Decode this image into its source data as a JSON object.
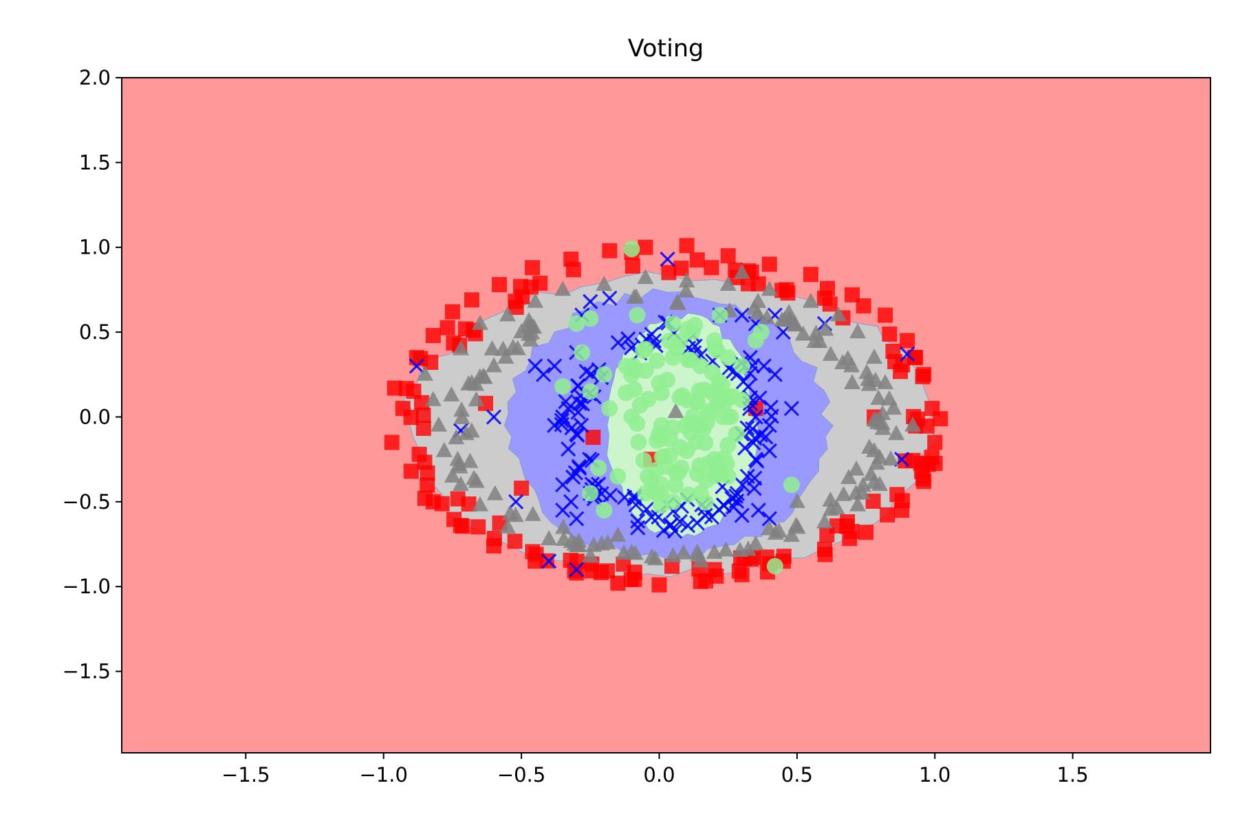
{
  "chart_data": {
    "type": "scatter",
    "title": "Voting",
    "xlabel": "",
    "ylabel": "",
    "xlim": [
      -1.95,
      2.0
    ],
    "ylim": [
      -1.98,
      2.0
    ],
    "x_ticks": [
      -1.5,
      -1.0,
      -0.5,
      0.0,
      0.5,
      1.0,
      1.5
    ],
    "y_ticks": [
      -1.5,
      -1.0,
      -0.5,
      0.0,
      0.5,
      1.0,
      1.5,
      2.0
    ],
    "x_tick_labels": [
      "−1.5",
      "−1.0",
      "−0.5",
      "0.0",
      "0.5",
      "1.0",
      "1.5"
    ],
    "y_tick_labels": [
      "−1.5",
      "−1.0",
      "−0.5",
      "0.0",
      "0.5",
      "1.0",
      "1.5",
      "2.0"
    ],
    "grid": false,
    "decision_regions": [
      {
        "class": "square",
        "color": "#ff9999",
        "extent": "background"
      },
      {
        "class": "triangle",
        "color": "#cccccc",
        "center": [
          0.04,
          -0.05
        ],
        "radii": [
          0.95,
          0.88
        ]
      },
      {
        "class": "x",
        "color": "#9999ff",
        "center": [
          0.03,
          -0.05
        ],
        "radii": [
          0.58,
          0.78
        ]
      },
      {
        "class": "circle",
        "color": "#ccf5cc",
        "center": [
          0.08,
          -0.05
        ],
        "radii": [
          0.27,
          0.65
        ]
      }
    ],
    "series": [
      {
        "marker": "square",
        "color": "#ff0000",
        "ring_center": [
          0.04,
          -0.02
        ],
        "ring_radii": [
          0.98,
          0.94
        ],
        "points": [
          [
            -0.96,
            0.17
          ],
          [
            -0.97,
            -0.15
          ],
          [
            -0.93,
            0.05
          ],
          [
            -0.88,
            0.35
          ],
          [
            -0.82,
            0.48
          ],
          [
            -0.75,
            0.62
          ],
          [
            -0.68,
            0.69
          ],
          [
            -0.58,
            0.78
          ],
          [
            -0.46,
            0.88
          ],
          [
            -0.32,
            0.93
          ],
          [
            -0.18,
            0.98
          ],
          [
            -0.05,
            1.0
          ],
          [
            0.1,
            1.01
          ],
          [
            0.25,
            0.95
          ],
          [
            0.4,
            0.9
          ],
          [
            0.55,
            0.84
          ],
          [
            0.7,
            0.72
          ],
          [
            0.82,
            0.6
          ],
          [
            0.9,
            0.45
          ],
          [
            0.96,
            0.25
          ],
          [
            0.99,
            0.05
          ],
          [
            1.0,
            -0.15
          ],
          [
            0.96,
            -0.38
          ],
          [
            0.88,
            -0.55
          ],
          [
            0.75,
            -0.68
          ],
          [
            0.6,
            -0.78
          ],
          [
            0.45,
            -0.85
          ],
          [
            0.3,
            -0.93
          ],
          [
            0.15,
            -0.97
          ],
          [
            0.0,
            -0.99
          ],
          [
            -0.15,
            -0.98
          ],
          [
            -0.3,
            -0.92
          ],
          [
            -0.45,
            -0.85
          ],
          [
            -0.6,
            -0.76
          ],
          [
            -0.72,
            -0.64
          ],
          [
            -0.82,
            -0.5
          ],
          [
            -0.9,
            -0.32
          ],
          [
            -0.63,
            0.08
          ],
          [
            -0.24,
            -0.12
          ],
          [
            -0.03,
            -0.25
          ],
          [
            0.35,
            0.05
          ],
          [
            0.78,
            0.0
          ],
          [
            -0.5,
            -0.42
          ],
          [
            0.2,
            -0.9
          ],
          [
            -0.1,
            0.97
          ],
          [
            0.6,
            0.7
          ],
          [
            -0.85,
            -0.48
          ],
          [
            0.93,
            0.35
          ]
        ]
      },
      {
        "marker": "x",
        "color": "#0000ff",
        "ring_center": [
          0.03,
          -0.05
        ],
        "ring_radii": [
          0.38,
          0.6
        ],
        "points": [
          [
            -0.35,
            0.0
          ],
          [
            -0.33,
            0.05
          ],
          [
            -0.38,
            -0.05
          ],
          [
            -0.3,
            -0.1
          ],
          [
            -0.35,
            -0.4
          ],
          [
            -0.32,
            -0.5
          ],
          [
            -0.3,
            -0.6
          ],
          [
            -0.25,
            -0.45
          ],
          [
            -0.35,
            -0.55
          ],
          [
            -0.28,
            0.6
          ],
          [
            -0.25,
            0.68
          ],
          [
            -0.18,
            0.7
          ],
          [
            -0.38,
            0.3
          ],
          [
            -0.42,
            0.25
          ],
          [
            -0.3,
            0.38
          ],
          [
            0.3,
            0.6
          ],
          [
            0.35,
            0.55
          ],
          [
            0.42,
            0.6
          ],
          [
            0.45,
            0.5
          ],
          [
            0.33,
            0.35
          ],
          [
            0.38,
            0.3
          ],
          [
            0.42,
            0.25
          ],
          [
            0.35,
            0.0
          ],
          [
            0.4,
            -0.05
          ],
          [
            0.3,
            -0.1
          ],
          [
            0.35,
            -0.25
          ],
          [
            0.4,
            -0.2
          ],
          [
            0.32,
            -0.35
          ],
          [
            0.36,
            -0.55
          ],
          [
            0.4,
            -0.6
          ],
          [
            0.3,
            -0.58
          ],
          [
            -0.52,
            -0.5
          ],
          [
            -0.6,
            0.0
          ],
          [
            -0.72,
            -0.08
          ],
          [
            0.48,
            0.05
          ],
          [
            -0.45,
            0.3
          ],
          [
            0.6,
            0.55
          ],
          [
            0.03,
            0.93
          ],
          [
            -0.88,
            0.3
          ],
          [
            0.9,
            0.37
          ],
          [
            -0.4,
            -0.85
          ],
          [
            -0.3,
            -0.9
          ],
          [
            0.88,
            -0.25
          ],
          [
            0.22,
            0.6
          ]
        ]
      },
      {
        "marker": "triangle",
        "color": "#808080",
        "ring_center": [
          0.04,
          -0.05
        ],
        "ring_radii": [
          0.8,
          0.78
        ],
        "points": [
          [
            -0.85,
            0.25
          ],
          [
            -0.82,
            0.1
          ],
          [
            -0.8,
            -0.05
          ],
          [
            -0.78,
            -0.2
          ],
          [
            -0.75,
            -0.35
          ],
          [
            -0.72,
            0.4
          ],
          [
            -0.65,
            0.55
          ],
          [
            -0.55,
            0.6
          ],
          [
            -0.45,
            0.68
          ],
          [
            -0.35,
            0.75
          ],
          [
            -0.2,
            0.78
          ],
          [
            -0.05,
            0.82
          ],
          [
            0.1,
            0.8
          ],
          [
            0.25,
            0.78
          ],
          [
            0.4,
            0.75
          ],
          [
            0.55,
            0.68
          ],
          [
            0.65,
            0.6
          ],
          [
            0.72,
            0.5
          ],
          [
            0.78,
            0.35
          ],
          [
            0.82,
            0.2
          ],
          [
            0.85,
            0.05
          ],
          [
            0.86,
            -0.1
          ],
          [
            0.84,
            -0.25
          ],
          [
            0.8,
            -0.4
          ],
          [
            0.72,
            -0.52
          ],
          [
            0.6,
            -0.62
          ],
          [
            0.48,
            -0.7
          ],
          [
            0.35,
            -0.75
          ],
          [
            0.2,
            -0.8
          ],
          [
            0.05,
            -0.82
          ],
          [
            -0.1,
            -0.8
          ],
          [
            -0.25,
            -0.82
          ],
          [
            -0.4,
            -0.72
          ],
          [
            -0.55,
            -0.65
          ],
          [
            -0.65,
            -0.52
          ],
          [
            -0.72,
            -0.4
          ],
          [
            -0.6,
            0.3
          ],
          [
            -0.68,
            0.2
          ],
          [
            -0.7,
            -0.1
          ],
          [
            0.06,
            0.03
          ],
          [
            0.78,
            -0.2
          ],
          [
            0.7,
            0.2
          ],
          [
            0.92,
            -0.05
          ],
          [
            -0.5,
            0.5
          ],
          [
            0.5,
            -0.5
          ],
          [
            -0.15,
            -0.7
          ],
          [
            0.15,
            -0.85
          ],
          [
            0.3,
            0.85
          ]
        ]
      },
      {
        "marker": "circle",
        "color": "#90ee90",
        "ring_center": [
          0.08,
          0.0
        ],
        "ring_radii": [
          0.22,
          0.6
        ],
        "points": [
          [
            0.05,
            0.55
          ],
          [
            0.12,
            0.5
          ],
          [
            0.2,
            0.45
          ],
          [
            0.25,
            0.35
          ],
          [
            0.15,
            0.3
          ],
          [
            0.05,
            0.35
          ],
          [
            -0.05,
            0.4
          ],
          [
            -0.12,
            0.3
          ],
          [
            -0.2,
            0.25
          ],
          [
            -0.25,
            0.15
          ],
          [
            -0.18,
            0.05
          ],
          [
            -0.1,
            0.0
          ],
          [
            0.0,
            -0.1
          ],
          [
            0.1,
            -0.2
          ],
          [
            0.2,
            -0.25
          ],
          [
            0.25,
            -0.35
          ],
          [
            0.15,
            -0.45
          ],
          [
            0.05,
            -0.5
          ],
          [
            -0.05,
            -0.45
          ],
          [
            -0.15,
            -0.35
          ],
          [
            -0.22,
            -0.3
          ],
          [
            -0.25,
            -0.45
          ],
          [
            -0.2,
            -0.55
          ],
          [
            0.1,
            0.1
          ],
          [
            0.2,
            0.15
          ],
          [
            0.3,
            0.1
          ],
          [
            0.25,
            0.0
          ],
          [
            0.15,
            -0.05
          ],
          [
            0.3,
            0.3
          ],
          [
            0.35,
            0.45
          ],
          [
            -0.3,
            0.55
          ],
          [
            -0.25,
            0.58
          ],
          [
            -0.28,
            0.38
          ],
          [
            0.37,
            0.5
          ],
          [
            -0.1,
            0.99
          ],
          [
            0.42,
            -0.88
          ],
          [
            0.48,
            -0.4
          ],
          [
            0.0,
            0.2
          ],
          [
            0.08,
            -0.3
          ],
          [
            -0.08,
            0.6
          ],
          [
            0.28,
            -0.1
          ],
          [
            -0.35,
            0.18
          ],
          [
            0.22,
            0.6
          ]
        ]
      }
    ]
  }
}
